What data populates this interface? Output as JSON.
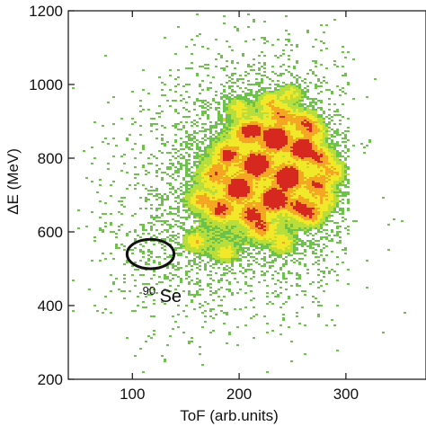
{
  "chart_data": {
    "type": "heatmap",
    "title": "",
    "xlabel": "ToF (arb.units)",
    "ylabel": "ΔE (MeV)",
    "xlim": [
      40,
      375
    ],
    "ylim": [
      200,
      1200
    ],
    "x_ticks": [
      100,
      200,
      300
    ],
    "x_tick_labels": [
      "100",
      "200",
      "300"
    ],
    "y_ticks": [
      200,
      400,
      600,
      800,
      1000,
      1200
    ],
    "y_tick_labels": [
      "200",
      "400",
      "600",
      "800",
      "1000",
      "1200"
    ],
    "grid": false,
    "legend": "none",
    "colors": {
      "low": "#6cc24a",
      "mid_low": "#b9dd3a",
      "mid": "#f2e82a",
      "mid_high": "#f5a623",
      "high": "#d6281e"
    },
    "background_density": {
      "center": [
        225,
        760
      ],
      "spread": [
        55,
        160
      ]
    },
    "blobs": [
      {
        "x": 233,
        "y": 855,
        "intensity": 1.0
      },
      {
        "x": 215,
        "y": 785,
        "intensity": 1.0
      },
      {
        "x": 245,
        "y": 750,
        "intensity": 1.0
      },
      {
        "x": 258,
        "y": 828,
        "intensity": 0.85
      },
      {
        "x": 198,
        "y": 720,
        "intensity": 0.9
      },
      {
        "x": 232,
        "y": 690,
        "intensity": 0.9
      },
      {
        "x": 188,
        "y": 813,
        "intensity": 0.55
      },
      {
        "x": 213,
        "y": 880,
        "intensity": 0.45
      },
      {
        "x": 238,
        "y": 917,
        "intensity": 0.45
      },
      {
        "x": 258,
        "y": 905,
        "intensity": 0.45
      },
      {
        "x": 275,
        "y": 802,
        "intensity": 0.5
      },
      {
        "x": 272,
        "y": 730,
        "intensity": 0.5
      },
      {
        "x": 255,
        "y": 670,
        "intensity": 0.5
      },
      {
        "x": 210,
        "y": 650,
        "intensity": 0.5
      },
      {
        "x": 181,
        "y": 663,
        "intensity": 0.55
      },
      {
        "x": 175,
        "y": 760,
        "intensity": 0.45
      },
      {
        "x": 163,
        "y": 690,
        "intensity": 0.4
      },
      {
        "x": 220,
        "y": 612,
        "intensity": 0.45
      },
      {
        "x": 267,
        "y": 648,
        "intensity": 0.45
      },
      {
        "x": 288,
        "y": 763,
        "intensity": 0.35
      },
      {
        "x": 203,
        "y": 870,
        "intensity": 0.35
      },
      {
        "x": 268,
        "y": 880,
        "intensity": 0.4
      },
      {
        "x": 248,
        "y": 980,
        "intensity": 0.3
      },
      {
        "x": 228,
        "y": 955,
        "intensity": 0.35
      },
      {
        "x": 198,
        "y": 940,
        "intensity": 0.3
      },
      {
        "x": 158,
        "y": 575,
        "intensity": 0.35
      },
      {
        "x": 185,
        "y": 545,
        "intensity": 0.3
      },
      {
        "x": 240,
        "y": 570,
        "intensity": 0.3
      },
      {
        "x": 280,
        "y": 690,
        "intensity": 0.3
      }
    ],
    "annotations": [
      {
        "label_sup": "90",
        "label": "Se",
        "x": 118,
        "y": 463
      },
      {
        "shape": "ellipse",
        "cx": 117,
        "cy": 540,
        "rx": 22,
        "ry": 40
      }
    ]
  }
}
